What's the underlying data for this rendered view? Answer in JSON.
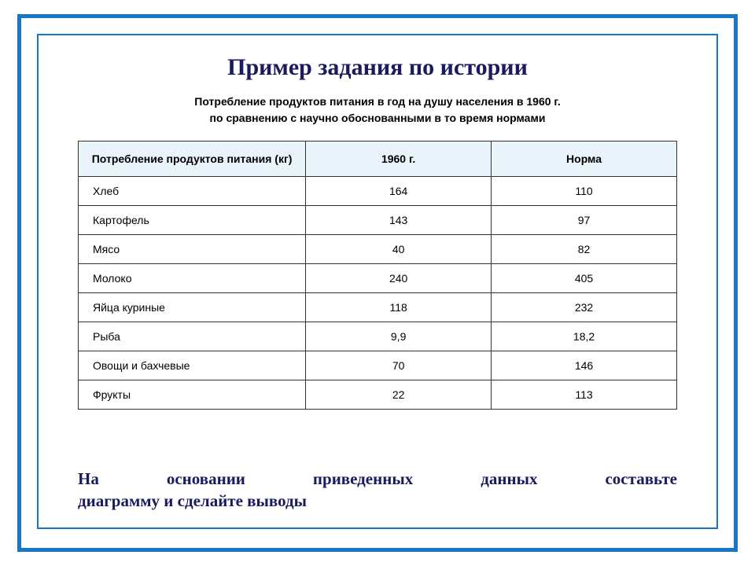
{
  "title": "Пример задания по истории",
  "subtitle_line1": "Потребление продуктов питания в год на душу населения в 1960 г.",
  "subtitle_line2": "по сравнению с научно обоснованными в то время нормами",
  "table": {
    "columns": [
      "Потребление продуктов питания (кг)",
      "1960 г.",
      "Норма"
    ],
    "rows": [
      [
        "Хлеб",
        "164",
        "110"
      ],
      [
        "Картофель",
        "143",
        "97"
      ],
      [
        "Мясо",
        "40",
        "82"
      ],
      [
        "Молоко",
        "240",
        "405"
      ],
      [
        "Яйца куриные",
        "118",
        "232"
      ],
      [
        "Рыба",
        "9,9",
        "18,2"
      ],
      [
        "Овощи и бахчевые",
        "70",
        "146"
      ],
      [
        "Фрукты",
        "22",
        "113"
      ]
    ],
    "header_bg_color": "#e8f4f9",
    "border_color": "#333333",
    "header_fontsize": 14,
    "cell_fontsize": 14
  },
  "instruction_words": [
    "На",
    "основании",
    "приведенных",
    "данных",
    "составьте"
  ],
  "instruction_line2": "диаграмму и сделайте выводы",
  "colors": {
    "frame_border": "#1976c4",
    "title_text": "#1a1a5e",
    "body_text": "#000000",
    "background": "#ffffff"
  }
}
